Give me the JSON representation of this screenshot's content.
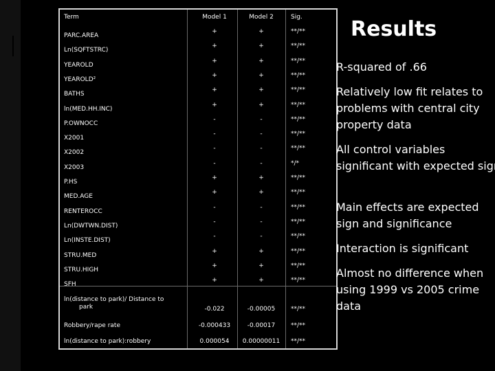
{
  "table": {
    "headers": {
      "term": "Term",
      "model1": "Model 1",
      "model2": "Model 2",
      "sig": "Sig."
    },
    "rows": [
      {
        "term": "PARC.AREA",
        "m1": "+",
        "m2": "+",
        "sig": "**/**"
      },
      {
        "term": "Ln(SQFTSTRC)",
        "m1": "+",
        "m2": "+",
        "sig": "**/**"
      },
      {
        "term": "YEAROLD",
        "m1": "+",
        "m2": "+",
        "sig": "**/**"
      },
      {
        "term": "YEAROLD²",
        "m1": "+",
        "m2": "+",
        "sig": "**/**"
      },
      {
        "term": "BATHS",
        "m1": "+",
        "m2": "+",
        "sig": "**/**"
      },
      {
        "term": "ln(MED.HH.INC)",
        "m1": "+",
        "m2": "+",
        "sig": "**/**"
      },
      {
        "term": "P.OWNOCC",
        "m1": "-",
        "m2": "-",
        "sig": "**/**"
      },
      {
        "term": "X2001",
        "m1": "-",
        "m2": "-",
        "sig": "**/**"
      },
      {
        "term": "X2002",
        "m1": "-",
        "m2": "-",
        "sig": "**/**"
      },
      {
        "term": "X2003",
        "m1": "-",
        "m2": "-",
        "sig": "*/*"
      },
      {
        "term": "P.HS",
        "m1": "+",
        "m2": "+",
        "sig": "**/**"
      },
      {
        "term": "MED.AGE",
        "m1": "+",
        "m2": "+",
        "sig": "**/**"
      },
      {
        "term": "RENTEROCC",
        "m1": "-",
        "m2": "-",
        "sig": "**/**"
      },
      {
        "term": "Ln(DWTWN.DIST)",
        "m1": "-",
        "m2": "-",
        "sig": "**/**"
      },
      {
        "term": "Ln(INSTE.DIST)",
        "m1": "-",
        "m2": "-",
        "sig": "**/**"
      },
      {
        "term": "STRU.MED",
        "m1": "+",
        "m2": "+",
        "sig": "**/**"
      },
      {
        "term": "STRU.HIGH",
        "m1": "+",
        "m2": "+",
        "sig": "**/**"
      },
      {
        "term": "SFH",
        "m1": "+",
        "m2": "+",
        "sig": "**/**"
      }
    ],
    "extra_rows": [
      {
        "term1": "ln(distance to park)/ Distance to",
        "term2": "park",
        "m1": "-0.022",
        "m2": "-0.00005",
        "sig": "**/**"
      },
      {
        "term": "Robbery/rape rate",
        "m1": "-0.000433",
        "m2": "-0.00017",
        "sig": "**/**"
      },
      {
        "term": "ln(distance to park):robbery",
        "m1": "0.000054",
        "m2": "0.00000011",
        "sig": "**/**"
      }
    ]
  },
  "slide": {
    "title": "Results",
    "bullets": [
      "R-squared of .66",
      "Relatively low fit relates to problems with central city property data",
      "All control variables significant with expected sign",
      "Main effects are expected sign and significance",
      "Interaction is significant",
      "Almost no difference when using 1999 vs 2005 crime data"
    ]
  }
}
